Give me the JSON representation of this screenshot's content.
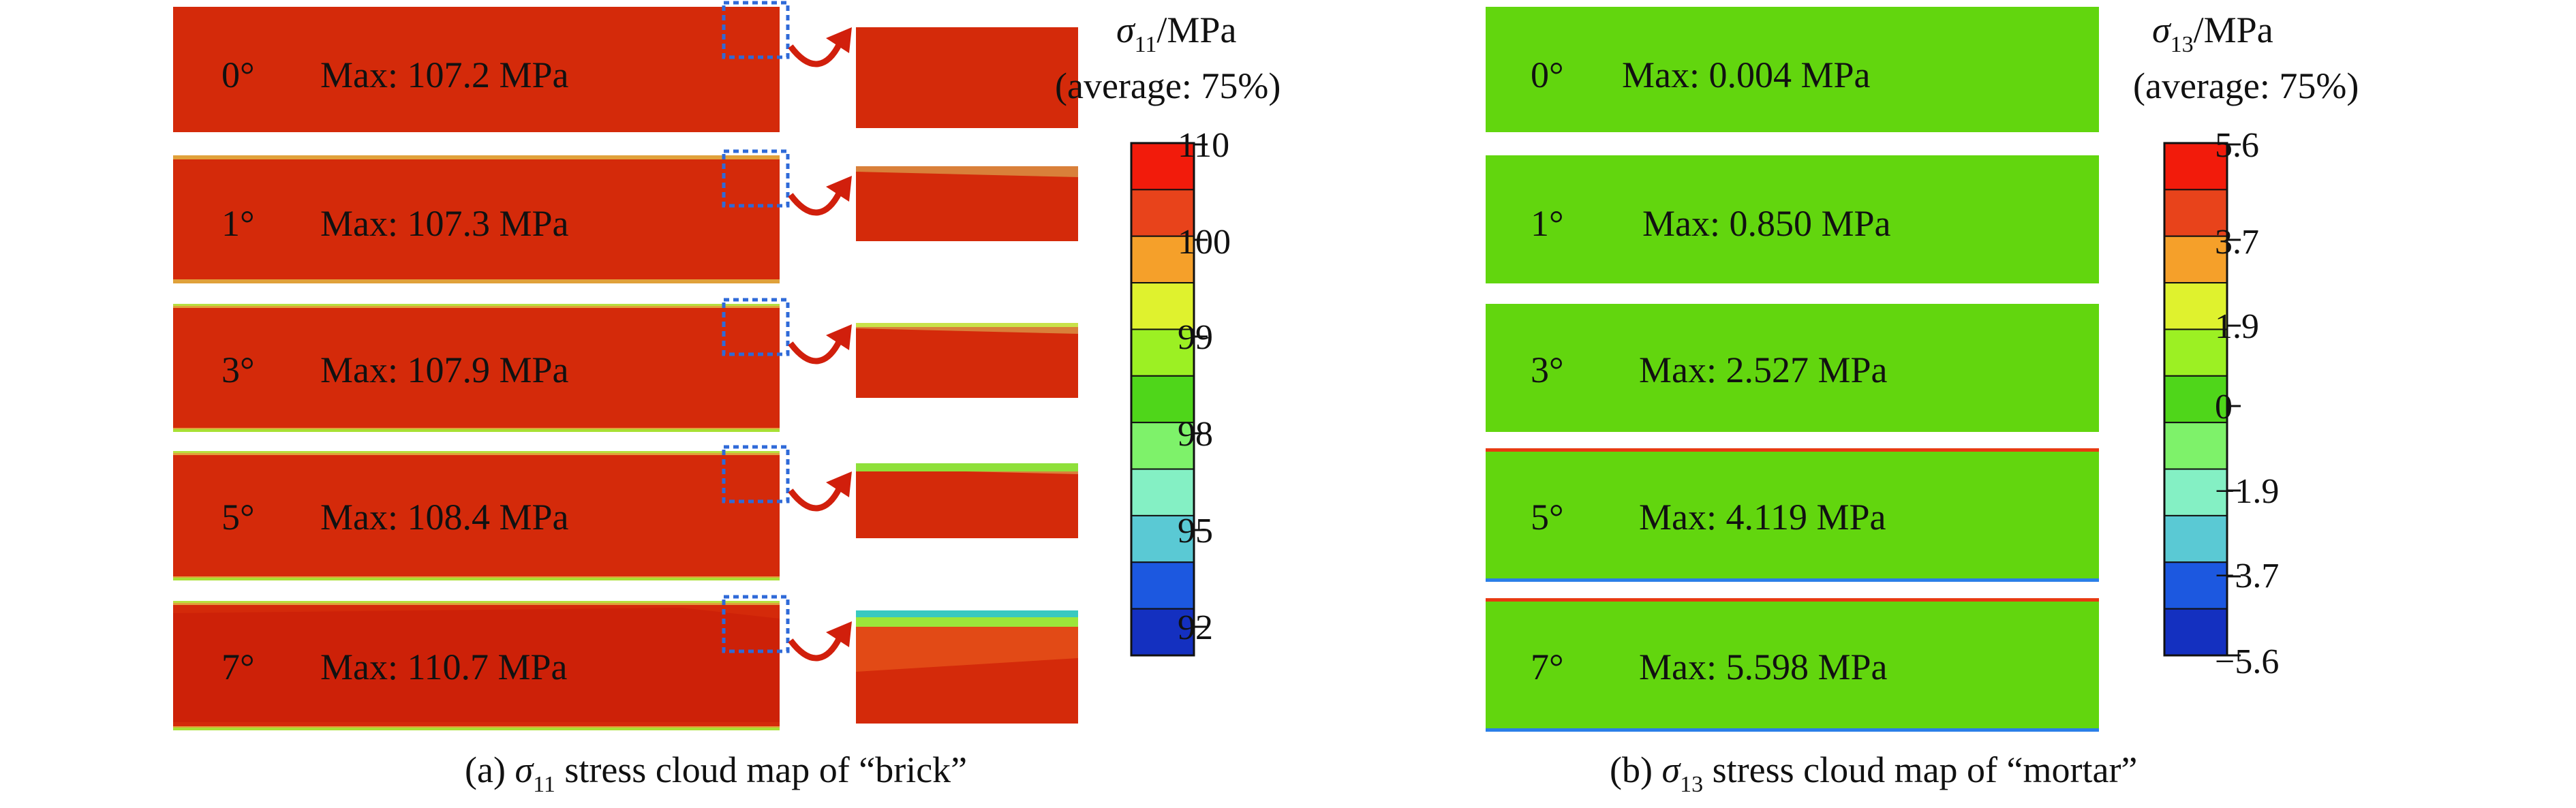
{
  "panel_a": {
    "caption_prefix": "(a) ",
    "caption_sigma": "σ",
    "caption_sub": "11",
    "caption_rest": " stress cloud map of “brick”",
    "legend_title_sigma": "σ",
    "legend_title_sub": "11",
    "legend_title_unit": "/MPa",
    "legend_avg": "(average: 75%)",
    "rows": [
      {
        "angle": "0°",
        "max": "Max: 107.2 MPa"
      },
      {
        "angle": "1°",
        "max": "Max: 107.3 MPa"
      },
      {
        "angle": "3°",
        "max": "Max: 107.9 MPa"
      },
      {
        "angle": "5°",
        "max": "Max: 108.4 MPa"
      },
      {
        "angle": "7°",
        "max": "Max: 110.7 MPa"
      }
    ],
    "colorbar_labels": [
      "110",
      "100",
      "99",
      "98",
      "95",
      "92"
    ]
  },
  "panel_b": {
    "caption_prefix": "(b) ",
    "caption_sigma": "σ",
    "caption_sub": "13",
    "caption_rest": " stress cloud map of “mortar”",
    "legend_title_sigma": "σ",
    "legend_title_sub": "13",
    "legend_title_unit": "/MPa",
    "legend_avg": "(average: 75%)",
    "rows": [
      {
        "angle": "0°",
        "max": "Max: 0.004 MPa"
      },
      {
        "angle": "1°",
        "max": "Max: 0.850 MPa"
      },
      {
        "angle": "3°",
        "max": "Max: 2.527 MPa"
      },
      {
        "angle": "5°",
        "max": "Max: 4.119 MPa"
      },
      {
        "angle": "7°",
        "max": "Max: 5.598 MPa"
      }
    ],
    "colorbar_labels": [
      "5.6",
      "3.7",
      "1.9",
      "0",
      "−1.9",
      "−3.7",
      "−5.6"
    ]
  },
  "colors": {
    "brick_red": "#d42a0a",
    "mortar_green": "#62d60e",
    "colorbar": [
      "#f21b0b",
      "#e8431b",
      "#f5a02a",
      "#dff22e",
      "#9cf023",
      "#4fd61a",
      "#7ef26a",
      "#84f0c4",
      "#5ac9d4",
      "#1c58e0",
      "#1430c0"
    ],
    "arrow": "#d11f0c",
    "dotted_box": "#2f6ad8"
  }
}
